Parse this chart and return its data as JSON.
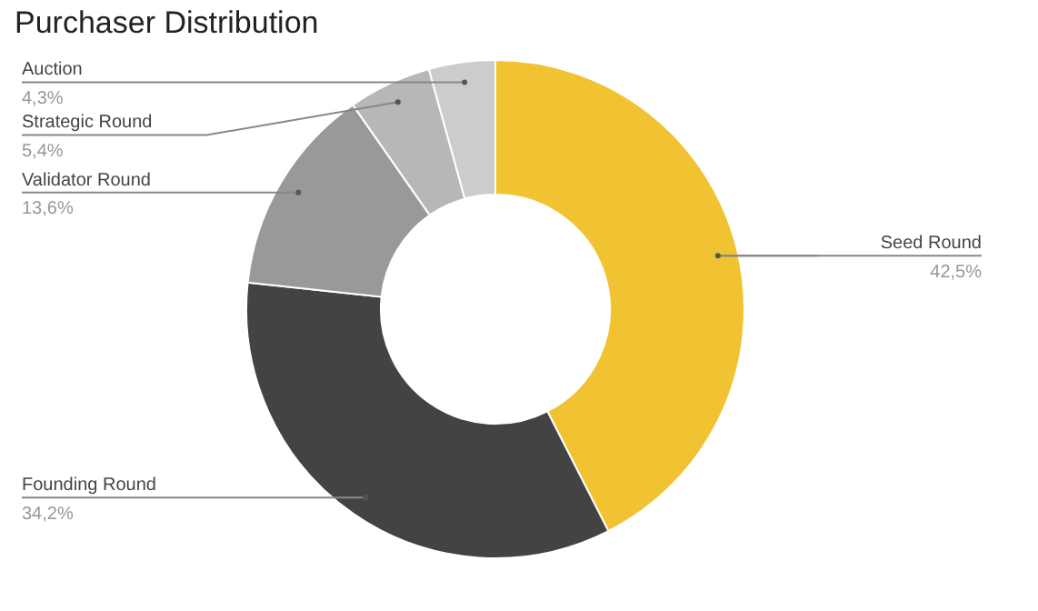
{
  "chart_data": {
    "type": "donut",
    "title": "Purchaser Distribution",
    "categories": [
      "Seed Round",
      "Founding Round",
      "Validator Round",
      "Strategic Round",
      "Auction"
    ],
    "values": [
      42.5,
      34.2,
      13.6,
      5.4,
      4.3
    ],
    "colors": [
      "#f1c232",
      "#434343",
      "#999999",
      "#b7b7b7",
      "#cccccc"
    ],
    "value_labels": [
      "42,5%",
      "34,2%",
      "13,6%",
      "5,4%",
      "4,3%"
    ],
    "legend": false
  }
}
